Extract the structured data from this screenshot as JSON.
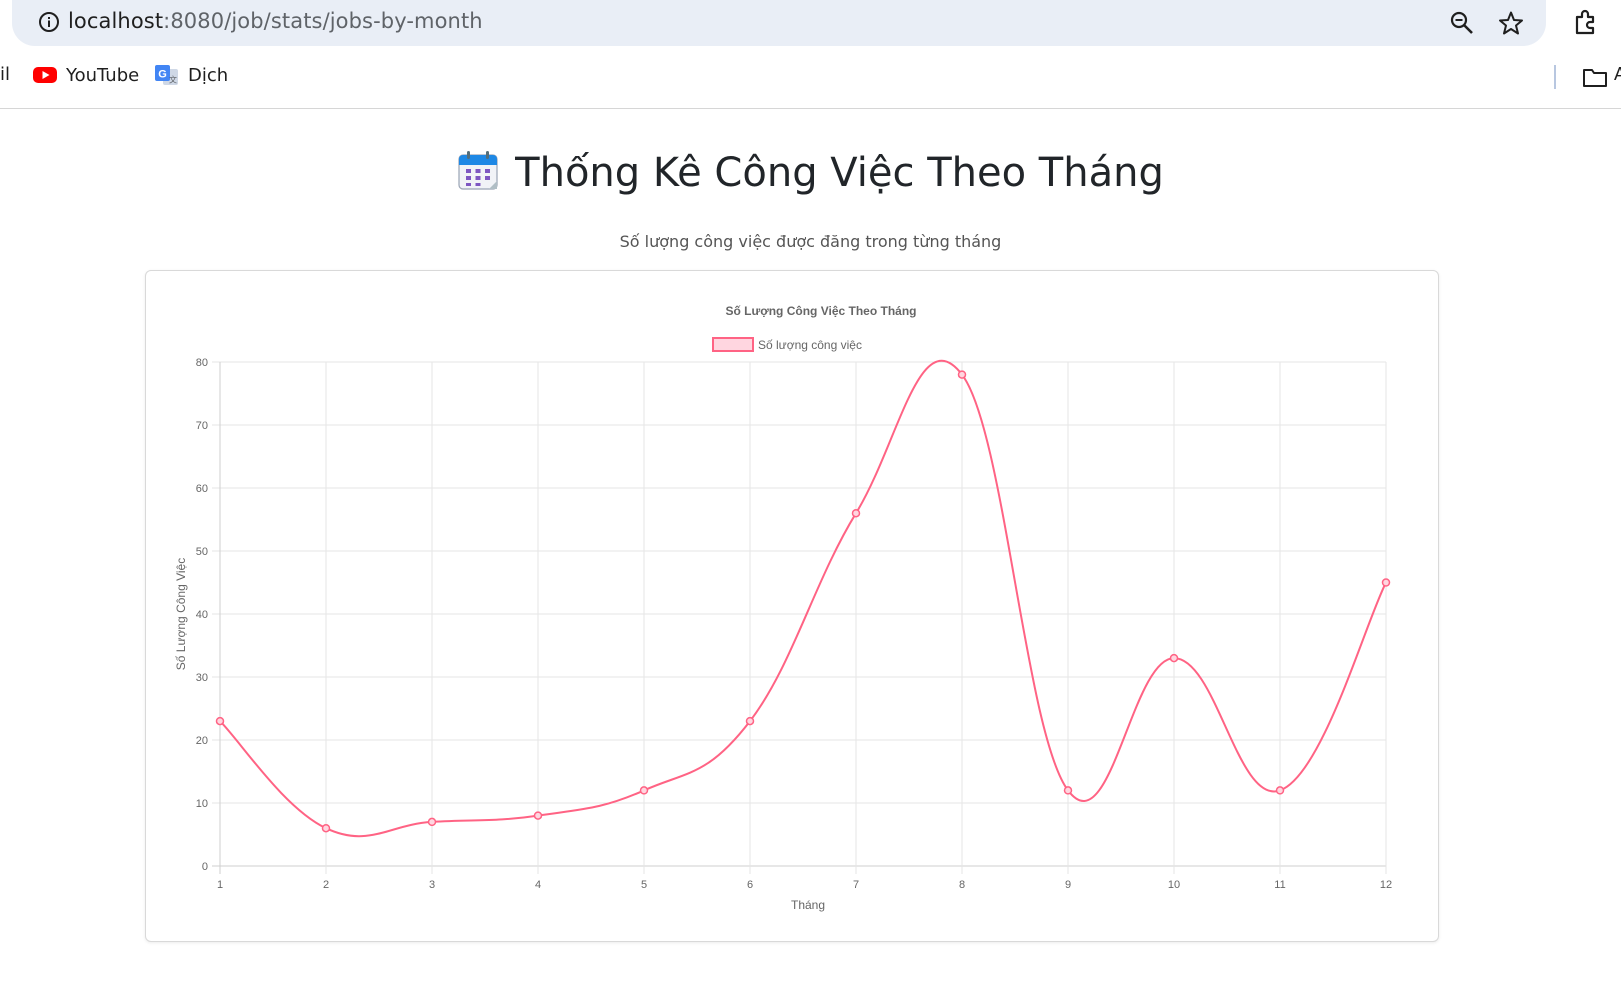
{
  "browser": {
    "url_host": "localhost",
    "url_path": ":8080/job/stats/jobs-by-month",
    "icons": [
      "info-icon",
      "zoom-icon",
      "star-icon",
      "extensions-icon"
    ]
  },
  "bookmarks": {
    "cut_item": "il",
    "items": [
      {
        "label": "YouTube",
        "icon": "youtube-icon"
      },
      {
        "label": "Dịch",
        "icon": "google-translate-icon"
      }
    ],
    "folder_cut_label": "A"
  },
  "page": {
    "title": "Thống Kê Công Việc Theo Tháng",
    "title_icon": "calendar-icon",
    "subtitle": "Số lượng công việc được đăng trong từng tháng"
  },
  "chart_data": {
    "type": "line",
    "title": "Số Lượng Công Việc Theo Tháng",
    "xlabel": "Tháng",
    "ylabel": "Số Lượng Công Việc",
    "categories": [
      "1",
      "2",
      "3",
      "4",
      "5",
      "6",
      "7",
      "8",
      "9",
      "10",
      "11",
      "12"
    ],
    "series": [
      {
        "name": "Số lượng công việc",
        "values": [
          23,
          6,
          7,
          8,
          12,
          23,
          56,
          78,
          12,
          33,
          12,
          45
        ],
        "color": "#ff6384",
        "fill": "#ffd6e0"
      }
    ],
    "ylim": [
      0,
      80
    ],
    "yticks": [
      "0",
      "10",
      "20",
      "30",
      "40",
      "50",
      "60",
      "70",
      "80"
    ],
    "grid": true,
    "smooth": true,
    "legend": "top-center"
  }
}
